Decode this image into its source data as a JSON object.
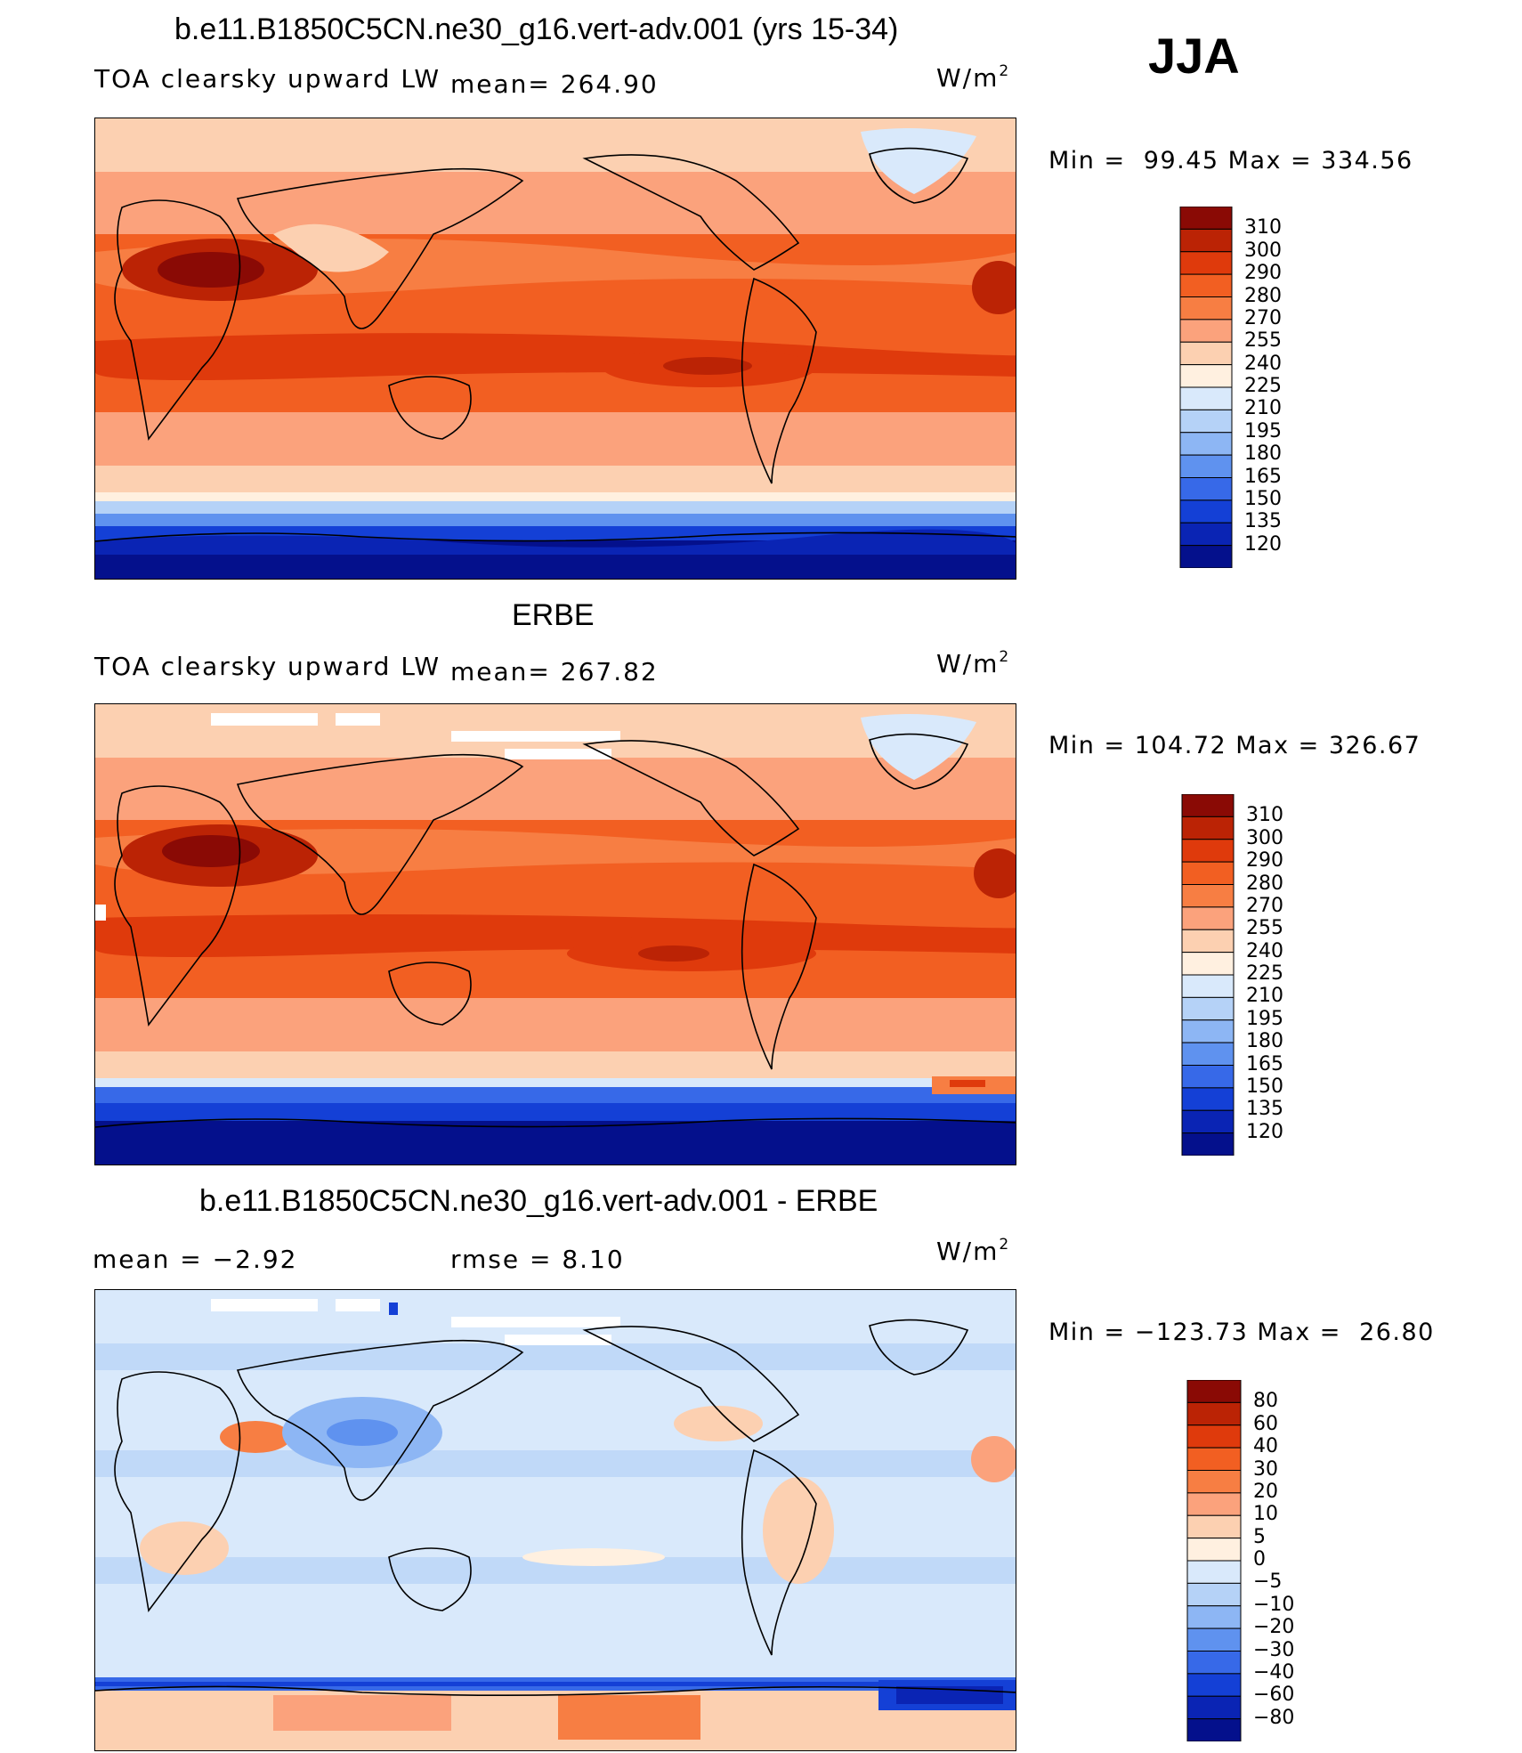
{
  "season": "JJA",
  "units_base": "W/m",
  "units_exp": "2",
  "chart_data": [
    {
      "type": "heatmap",
      "title": "b.e11.B1850C5CN.ne30_g16.vert-adv.001 (yrs 15-34)",
      "variable": "TOA clearsky upward LW",
      "mean_text": "mean= 264.90",
      "min_text": "Min =  99.45 Max = 334.56",
      "min": 99.45,
      "max": 334.56,
      "levels": [
        "310",
        "300",
        "290",
        "280",
        "270",
        "255",
        "240",
        "225",
        "210",
        "195",
        "180",
        "165",
        "150",
        "135",
        "120"
      ],
      "colors": [
        "#8a0a05",
        "#bb2305",
        "#df3a0c",
        "#f25f22",
        "#f77e43",
        "#fba27c",
        "#fcd0b1",
        "#fff0e0",
        "#d9e9fb",
        "#b5d2f7",
        "#8db6f4",
        "#5f92ef",
        "#3769e8",
        "#1440d6",
        "#0a24b4",
        "#04108c"
      ]
    },
    {
      "type": "heatmap",
      "title": "ERBE",
      "variable": "TOA clearsky upward LW",
      "mean_text": "mean= 267.82",
      "min_text": "Min = 104.72 Max = 326.67",
      "min": 104.72,
      "max": 326.67,
      "levels": [
        "310",
        "300",
        "290",
        "280",
        "270",
        "255",
        "240",
        "225",
        "210",
        "195",
        "180",
        "165",
        "150",
        "135",
        "120"
      ],
      "colors": [
        "#8a0a05",
        "#bb2305",
        "#df3a0c",
        "#f25f22",
        "#f77e43",
        "#fba27c",
        "#fcd0b1",
        "#fff0e0",
        "#d9e9fb",
        "#b5d2f7",
        "#8db6f4",
        "#5f92ef",
        "#3769e8",
        "#1440d6",
        "#0a24b4",
        "#04108c"
      ]
    },
    {
      "type": "heatmap",
      "title": "b.e11.B1850C5CN.ne30_g16.vert-adv.001 - ERBE",
      "mean_text": "mean =   −2.92",
      "rmse_text": "rmse =    8.10",
      "min_text": "Min = −123.73 Max =  26.80",
      "min": -123.73,
      "max": 26.8,
      "mean": -2.92,
      "rmse": 8.1,
      "levels": [
        "80",
        "60",
        "40",
        "30",
        "20",
        "10",
        "5",
        "0",
        "−5",
        "−10",
        "−20",
        "−30",
        "−40",
        "−60",
        "−80"
      ],
      "colors": [
        "#8a0a05",
        "#bb2305",
        "#df3a0c",
        "#f25f22",
        "#f77e43",
        "#fba27c",
        "#fcd0b1",
        "#fff0e0",
        "#d9e9fb",
        "#b5d2f7",
        "#8db6f4",
        "#5f92ef",
        "#3769e8",
        "#1440d6",
        "#0a24b4",
        "#04108c"
      ]
    }
  ]
}
